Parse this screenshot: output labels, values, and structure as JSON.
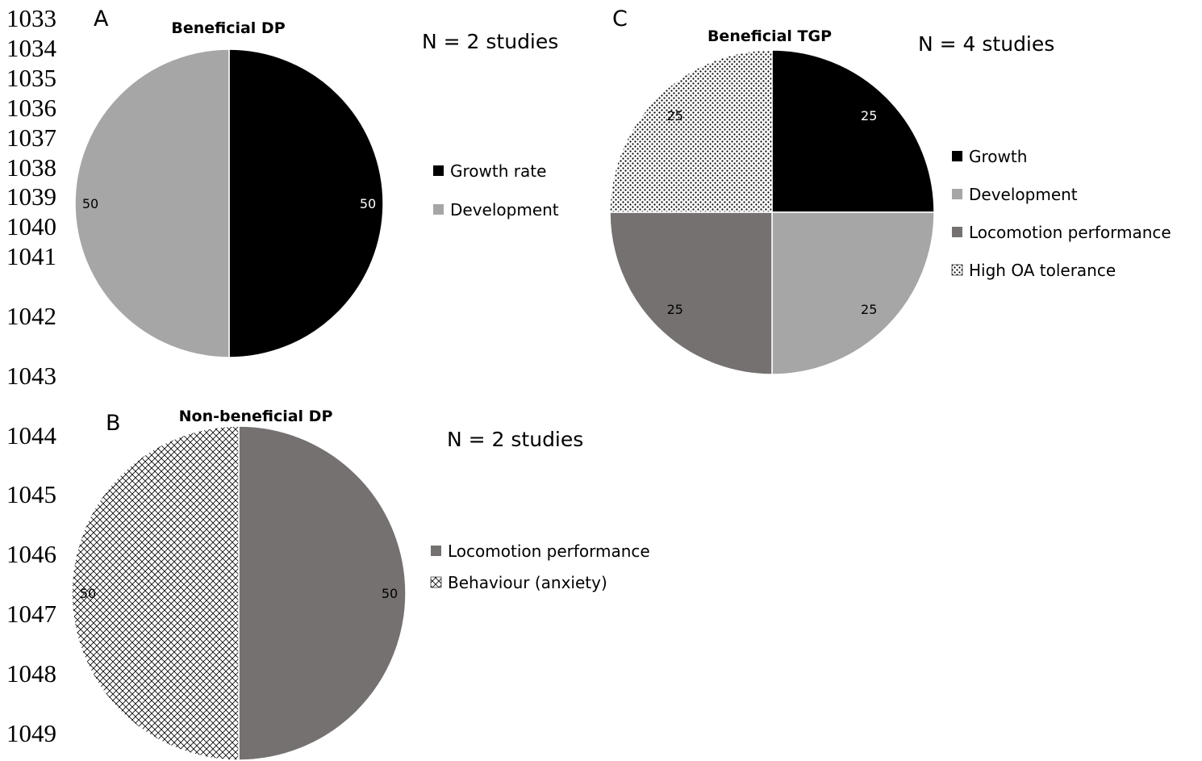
{
  "line_numbers": [
    "1033",
    "1034",
    "1035",
    "1036",
    "1037",
    "1038",
    "1039",
    "1040",
    "1041",
    "1042",
    "1043",
    "1044",
    "1045",
    "1046",
    "1047",
    "1048",
    "1049"
  ],
  "colors": {
    "black": "#000000",
    "light_gray": "#a6a6a6",
    "dark_gray": "#767171",
    "edge": "#ffffff"
  },
  "chart_data": [
    {
      "panel": "A",
      "type": "pie",
      "title": "Beneficial DP",
      "annotation": "N = 2 studies",
      "slices": [
        {
          "label": "Growth rate",
          "value": 50,
          "fill": "black"
        },
        {
          "label": "Development",
          "value": 50,
          "fill": "light_gray"
        }
      ]
    },
    {
      "panel": "B",
      "type": "pie",
      "title": "Non-beneficial DP",
      "annotation": "N = 2 studies",
      "slices": [
        {
          "label": "Locomotion performance",
          "value": 50,
          "fill": "dark_gray"
        },
        {
          "label": "Behaviour (anxiety)",
          "value": 50,
          "fill": "crosshatch"
        }
      ]
    },
    {
      "panel": "C",
      "type": "pie",
      "title": "Beneficial TGP",
      "annotation": "N = 4 studies",
      "slices": [
        {
          "label": "Growth",
          "value": 25,
          "fill": "black"
        },
        {
          "label": "Development",
          "value": 25,
          "fill": "light_gray"
        },
        {
          "label": "Locomotion performance",
          "value": 25,
          "fill": "dark_gray"
        },
        {
          "label": "High OA tolerance",
          "value": 25,
          "fill": "dots"
        }
      ]
    }
  ]
}
